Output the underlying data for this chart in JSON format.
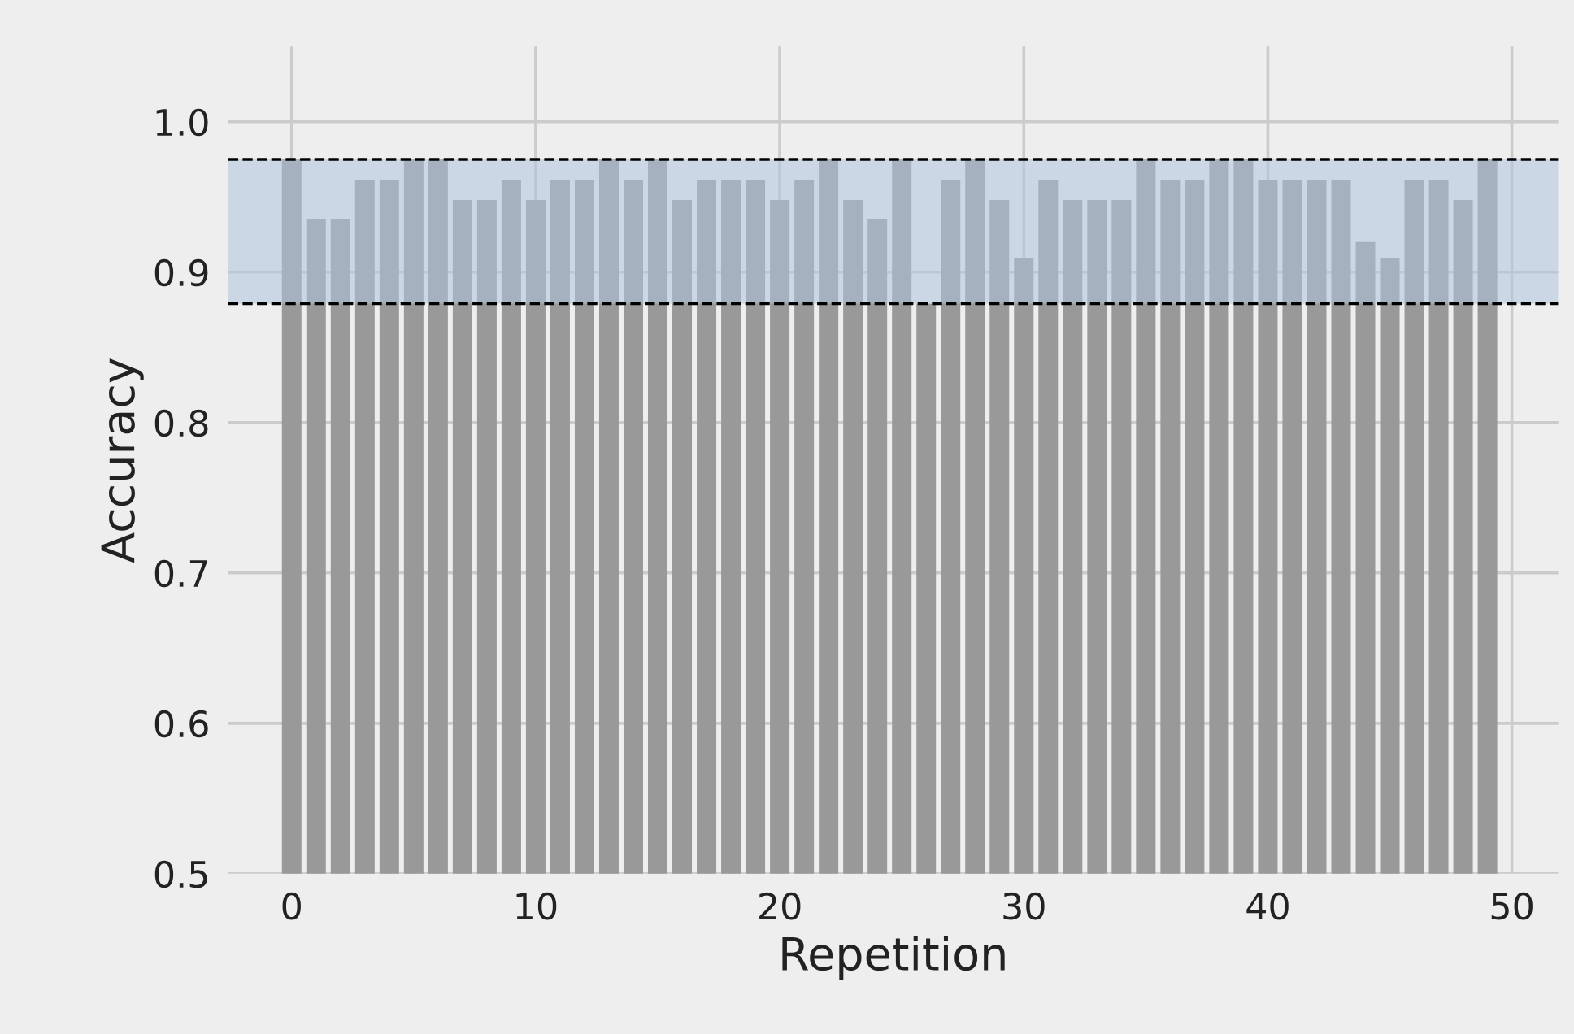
{
  "chart_data": {
    "type": "bar",
    "xlabel": "Repetition",
    "ylabel": "Accuracy",
    "x": [
      0,
      1,
      2,
      3,
      4,
      5,
      6,
      7,
      8,
      9,
      10,
      11,
      12,
      13,
      14,
      15,
      16,
      17,
      18,
      19,
      20,
      21,
      22,
      23,
      24,
      25,
      26,
      27,
      28,
      29,
      30,
      31,
      32,
      33,
      34,
      35,
      36,
      37,
      38,
      39,
      40,
      41,
      42,
      43,
      44,
      45,
      46,
      47,
      48,
      49
    ],
    "values": [
      0.975,
      0.935,
      0.935,
      0.961,
      0.961,
      0.975,
      0.975,
      0.948,
      0.948,
      0.961,
      0.948,
      0.961,
      0.961,
      0.975,
      0.961,
      0.975,
      0.948,
      0.961,
      0.961,
      0.961,
      0.948,
      0.961,
      0.975,
      0.948,
      0.935,
      0.975,
      0.879,
      0.961,
      0.975,
      0.948,
      0.909,
      0.961,
      0.948,
      0.948,
      0.948,
      0.975,
      0.961,
      0.961,
      0.975,
      0.975,
      0.961,
      0.961,
      0.961,
      0.961,
      0.92,
      0.909,
      0.961,
      0.961,
      0.948,
      0.975
    ],
    "color": "#999999",
    "xlim": [
      -2.6,
      51.9
    ],
    "ylim": [
      0.5,
      1.05
    ],
    "xticks": [
      0,
      10,
      20,
      30,
      40,
      50
    ],
    "yticks": [
      {
        "value": 0.5,
        "label": "0.5"
      },
      {
        "value": 0.6,
        "label": "0.6"
      },
      {
        "value": 0.7,
        "label": "0.7"
      },
      {
        "value": 0.8,
        "label": "0.8"
      },
      {
        "value": 0.9,
        "label": "0.9"
      },
      {
        "value": 1.0,
        "label": "1.0"
      }
    ],
    "bands": [
      {
        "axis": "y",
        "from": 0.879,
        "to": 0.975,
        "color": "#b0c4de"
      }
    ],
    "ref_lines": [
      {
        "axis": "y",
        "value": 0.879,
        "color": "#000000",
        "line_style": "dashed"
      },
      {
        "axis": "y",
        "value": 0.975,
        "color": "#000000",
        "line_style": "dashed"
      }
    ],
    "grid": true
  }
}
